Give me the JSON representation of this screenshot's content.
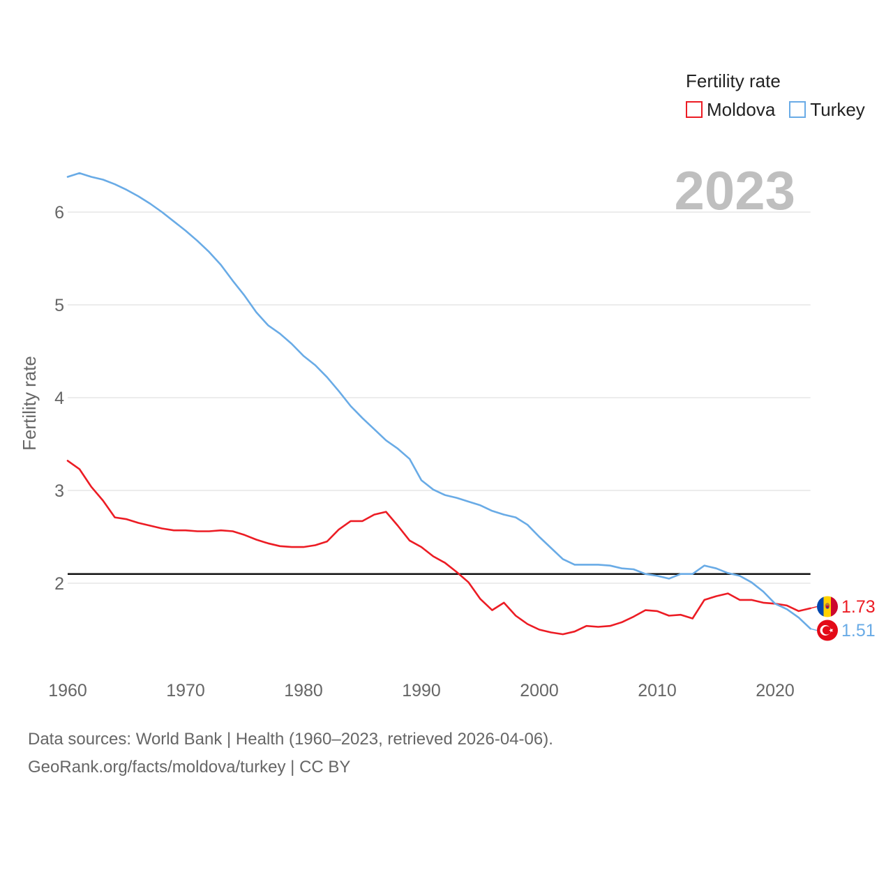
{
  "footer": {
    "sources": "Data sources: World Bank | Health (1960–2023, retrieved 2026-04-06).",
    "credit": "GeoRank.org/facts/moldova/turkey | CC BY"
  },
  "chart_data": {
    "type": "line",
    "title": "",
    "xlabel": "",
    "ylabel": "Fertility rate",
    "legend_title": "Fertility rate",
    "legend_position": "top-right",
    "year_label": "2023",
    "grid": true,
    "xlim": [
      1960,
      2023
    ],
    "ylim": [
      1.0,
      6.5
    ],
    "x_ticks": [
      1960,
      1970,
      1980,
      1990,
      2000,
      2010,
      2020
    ],
    "y_ticks": [
      2,
      3,
      4,
      5,
      6
    ],
    "reference_lines": [
      {
        "value": 2.1,
        "color": "#111111"
      }
    ],
    "x": [
      1960,
      1961,
      1962,
      1963,
      1964,
      1965,
      1966,
      1967,
      1968,
      1969,
      1970,
      1971,
      1972,
      1973,
      1974,
      1975,
      1976,
      1977,
      1978,
      1979,
      1980,
      1981,
      1982,
      1983,
      1984,
      1985,
      1986,
      1987,
      1988,
      1989,
      1990,
      1991,
      1992,
      1993,
      1994,
      1995,
      1996,
      1997,
      1998,
      1999,
      2000,
      2001,
      2002,
      2003,
      2004,
      2005,
      2006,
      2007,
      2008,
      2009,
      2010,
      2011,
      2012,
      2013,
      2014,
      2015,
      2016,
      2017,
      2018,
      2019,
      2020,
      2021,
      2022,
      2023
    ],
    "series": [
      {
        "name": "Moldova",
        "color": "#ec1c24",
        "flag_icon": "moldova-flag-icon",
        "end_label": "1.73",
        "values": [
          3.32,
          3.23,
          3.04,
          2.89,
          2.71,
          2.69,
          2.65,
          2.62,
          2.59,
          2.57,
          2.57,
          2.56,
          2.56,
          2.57,
          2.56,
          2.52,
          2.47,
          2.43,
          2.4,
          2.39,
          2.39,
          2.41,
          2.45,
          2.58,
          2.67,
          2.67,
          2.74,
          2.77,
          2.62,
          2.46,
          2.39,
          2.29,
          2.22,
          2.12,
          2.01,
          1.83,
          1.71,
          1.79,
          1.65,
          1.56,
          1.5,
          1.47,
          1.45,
          1.48,
          1.54,
          1.53,
          1.54,
          1.58,
          1.64,
          1.71,
          1.7,
          1.65,
          1.66,
          1.62,
          1.82,
          1.86,
          1.89,
          1.82,
          1.82,
          1.79,
          1.78,
          1.76,
          1.7,
          1.73
        ]
      },
      {
        "name": "Turkey",
        "color": "#69abe6",
        "flag_icon": "turkey-flag-icon",
        "end_label": "1.51",
        "values": [
          6.38,
          6.42,
          6.38,
          6.35,
          6.3,
          6.24,
          6.17,
          6.09,
          6.0,
          5.9,
          5.8,
          5.69,
          5.57,
          5.43,
          5.26,
          5.1,
          4.92,
          4.78,
          4.69,
          4.58,
          4.45,
          4.35,
          4.22,
          4.07,
          3.91,
          3.78,
          3.66,
          3.54,
          3.45,
          3.34,
          3.11,
          3.01,
          2.95,
          2.92,
          2.88,
          2.84,
          2.78,
          2.74,
          2.71,
          2.63,
          2.5,
          2.38,
          2.26,
          2.2,
          2.2,
          2.2,
          2.19,
          2.16,
          2.15,
          2.1,
          2.08,
          2.05,
          2.1,
          2.1,
          2.19,
          2.16,
          2.11,
          2.08,
          2.01,
          1.91,
          1.78,
          1.72,
          1.63,
          1.51
        ]
      }
    ]
  }
}
